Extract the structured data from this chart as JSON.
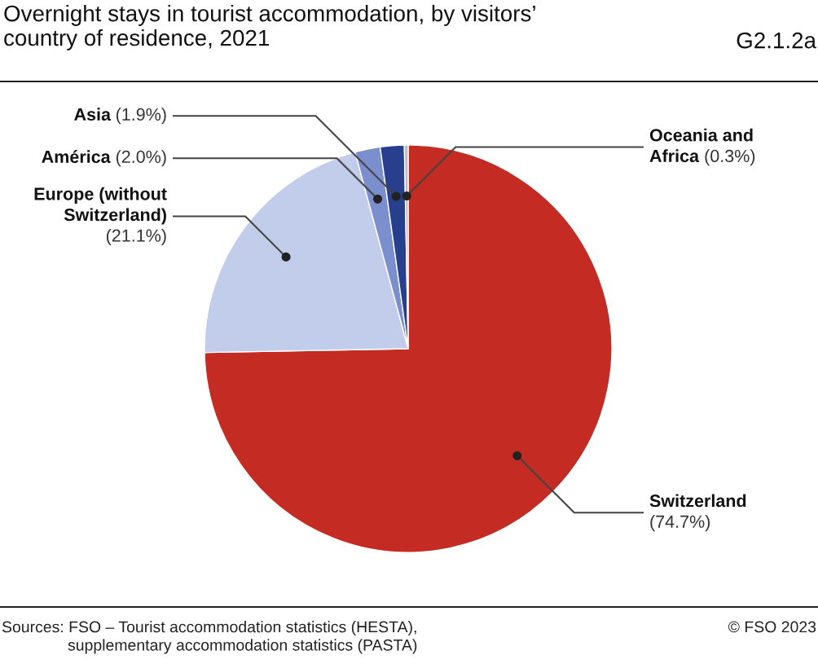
{
  "chart_data": {
    "type": "pie",
    "title": "Overnight stays in tourist accommodation, by visitors’\ncountry of residence, 2021",
    "subtitle": "G2.1.2a",
    "categories": [
      "Switzerland",
      "Europe (without\nSwitzerland)",
      "América",
      "Asia",
      "Oceania and\nAfrica"
    ],
    "values": [
      74.7,
      21.1,
      2.0,
      1.9,
      0.3
    ],
    "value_labels": [
      "(74.7%)",
      "(21.1%)",
      "(2.0%)",
      "(1.9%)",
      "(0.3%)"
    ],
    "colors": [
      "#c42b22",
      "#c2cceb",
      "#7b8fcf",
      "#283f8e",
      "#b8bccb"
    ],
    "annotations": [
      "Sources: FSO – Tourist accommodation statistics (HESTA),\n               supplementary accommodation statistics (PASTA)",
      "© FSO 2023"
    ],
    "legend": false
  }
}
